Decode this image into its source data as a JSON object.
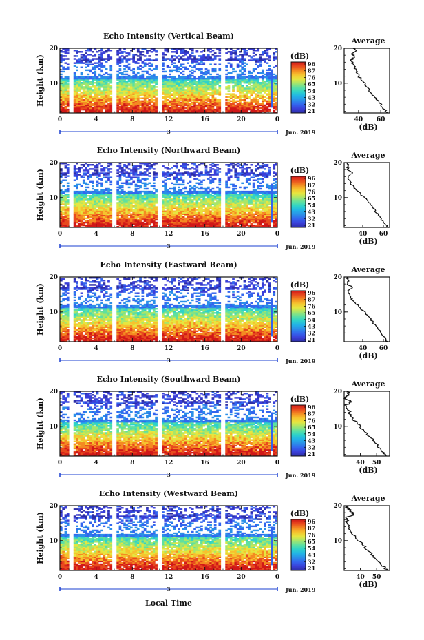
{
  "figure": {
    "xlabel_bottom": "Local Time",
    "date_label": "Jun. 2019",
    "day_label": "3",
    "x_ticks": [
      "0",
      "4",
      "8",
      "12",
      "16",
      "20",
      "0"
    ],
    "y_ticks": [
      "20",
      "10"
    ],
    "ylabel": "Height (km)",
    "colorbar": {
      "unit_label": "(dB)",
      "tick_labels": [
        "96",
        "87",
        "76",
        "65",
        "54",
        "43",
        "32",
        "21"
      ],
      "colors": [
        "#2c2ea6",
        "#3a3fd8",
        "#3366ee",
        "#2b8fe8",
        "#22b4e6",
        "#2fd3c8",
        "#5fe0a0",
        "#a8e66a",
        "#e6e640",
        "#f6c22e",
        "#f48a22",
        "#e84a1e",
        "#d01818"
      ]
    },
    "profile_title": "Average",
    "profile_xlabel": "(dB)"
  },
  "chart_data": [
    {
      "type": "heatmap",
      "title": "Echo Intensity (Vertical Beam)",
      "ylabel": "Height (km)",
      "xlim": [
        0,
        24
      ],
      "ylim": [
        1.5,
        20
      ],
      "value_range_db": [
        21,
        96
      ],
      "data_gaps_hours": [
        [
          1.0,
          1.5
        ],
        [
          5.8,
          6.2
        ],
        [
          10.8,
          11.2
        ],
        [
          17.7,
          18.2
        ]
      ],
      "profile": {
        "title": "Average",
        "xlabel": "(dB)",
        "x_ticks": [
          40,
          60
        ],
        "xlim": [
          27,
          68
        ],
        "height_km": [
          1.5,
          3,
          5,
          7,
          9,
          10.5,
          12,
          13.5,
          15,
          16.5,
          17.5,
          18.5,
          19.3,
          20
        ],
        "values_db": [
          66,
          62,
          58,
          52,
          47,
          44,
          40,
          38,
          36,
          33,
          36,
          34,
          38,
          35
        ]
      }
    },
    {
      "type": "heatmap",
      "title": "Echo Intensity (Northward Beam)",
      "ylabel": "Height (km)",
      "xlim": [
        0,
        24
      ],
      "ylim": [
        1.5,
        20
      ],
      "value_range_db": [
        21,
        96
      ],
      "data_gaps_hours": [
        [
          1.0,
          1.5
        ],
        [
          5.8,
          6.2
        ],
        [
          10.8,
          11.2
        ],
        [
          17.7,
          18.2
        ]
      ],
      "profile": {
        "title": "Average",
        "xlabel": "(dB)",
        "x_ticks": [
          40,
          60
        ],
        "xlim": [
          22,
          66
        ],
        "height_km": [
          1.5,
          3,
          5,
          7,
          9,
          11,
          12.5,
          14,
          16,
          17,
          18,
          19,
          20
        ],
        "values_db": [
          65,
          60,
          55,
          50,
          45,
          38,
          33,
          28,
          26,
          30,
          25,
          26,
          25
        ]
      }
    },
    {
      "type": "heatmap",
      "title": "Echo Intensity (Eastward Beam)",
      "ylabel": "Height (km)",
      "xlim": [
        0,
        24
      ],
      "ylim": [
        1.5,
        20
      ],
      "value_range_db": [
        21,
        96
      ],
      "data_gaps_hours": [
        [
          1.0,
          1.5
        ],
        [
          5.8,
          6.2
        ],
        [
          10.8,
          11.2
        ],
        [
          17.7,
          18.2
        ]
      ],
      "profile": {
        "title": "Average",
        "xlabel": "(dB)",
        "x_ticks": [
          40,
          60
        ],
        "xlim": [
          22,
          66
        ],
        "height_km": [
          1.5,
          3,
          5,
          7,
          9,
          11,
          12.5,
          14,
          16,
          17,
          18,
          19,
          20
        ],
        "values_db": [
          64,
          60,
          55,
          50,
          45,
          38,
          33,
          28,
          26,
          30,
          25,
          26,
          25
        ]
      }
    },
    {
      "type": "heatmap",
      "title": "Echo Intensity (Southward Beam)",
      "ylabel": "Height (km)",
      "xlim": [
        0,
        24
      ],
      "ylim": [
        1.5,
        20
      ],
      "value_range_db": [
        21,
        96
      ],
      "data_gaps_hours": [
        [
          1.0,
          1.5
        ],
        [
          5.8,
          6.2
        ],
        [
          10.8,
          11.2
        ],
        [
          17.7,
          18.2
        ]
      ],
      "profile": {
        "title": "Average",
        "xlabel": "(dB)",
        "x_ticks": [
          40,
          50
        ],
        "xlim": [
          30,
          58
        ],
        "height_km": [
          1.5,
          3,
          5,
          7,
          9,
          11,
          13,
          14.5,
          16,
          17,
          18,
          19,
          20
        ],
        "values_db": [
          56,
          53,
          50,
          46,
          42,
          38,
          34,
          33,
          31,
          35,
          30,
          33,
          32
        ]
      }
    },
    {
      "type": "heatmap",
      "title": "Echo Intensity (Westward Beam)",
      "ylabel": "Height (km)",
      "xlim": [
        0,
        24
      ],
      "ylim": [
        1.5,
        20
      ],
      "value_range_db": [
        21,
        96
      ],
      "data_gaps_hours": [
        [
          1.0,
          1.5
        ],
        [
          5.8,
          6.2
        ],
        [
          10.8,
          11.2
        ],
        [
          17.7,
          18.2
        ]
      ],
      "profile": {
        "title": "Average",
        "xlabel": "(dB)",
        "x_ticks": [
          40,
          50
        ],
        "xlim": [
          30,
          58
        ],
        "height_km": [
          1.5,
          3,
          5,
          7,
          9,
          11,
          13,
          15,
          16.5,
          17.5,
          18.5,
          19.3,
          20
        ],
        "values_db": [
          57,
          53,
          49,
          45,
          41,
          37,
          34,
          32,
          31,
          36,
          34,
          32,
          31
        ]
      }
    }
  ]
}
